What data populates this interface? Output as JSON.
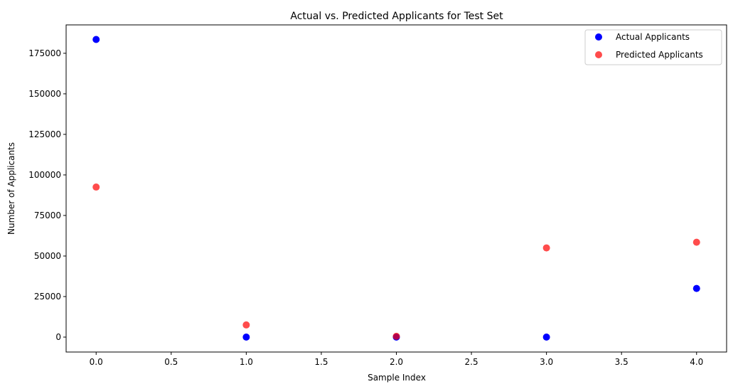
{
  "chart_data": {
    "type": "scatter",
    "title": "Actual vs. Predicted Applicants for Test Set",
    "xlabel": "Sample Index",
    "ylabel": "Number of Applicants",
    "xlim": [
      -0.2,
      4.2
    ],
    "ylim": [
      -9200,
      192500
    ],
    "xticks": [
      0.0,
      0.5,
      1.0,
      1.5,
      2.0,
      2.5,
      3.0,
      3.5,
      4.0
    ],
    "xtick_labels": [
      "0.0",
      "0.5",
      "1.0",
      "1.5",
      "2.0",
      "2.5",
      "3.0",
      "3.5",
      "4.0"
    ],
    "yticks": [
      0,
      25000,
      50000,
      75000,
      100000,
      125000,
      150000,
      175000
    ],
    "ytick_labels": [
      "0",
      "25000",
      "50000",
      "75000",
      "100000",
      "125000",
      "150000",
      "175000"
    ],
    "grid": false,
    "legend_position": "top-right",
    "series": [
      {
        "name": "Actual Applicants",
        "color": "#0000ff",
        "opacity": 1.0,
        "x": [
          0,
          1,
          2,
          3,
          4
        ],
        "y": [
          183500,
          0,
          0,
          0,
          30000
        ]
      },
      {
        "name": "Predicted Applicants",
        "color": "#ff0000",
        "opacity": 0.7,
        "x": [
          0,
          1,
          2,
          3,
          4
        ],
        "y": [
          92500,
          7500,
          500,
          55000,
          58500
        ]
      }
    ]
  }
}
